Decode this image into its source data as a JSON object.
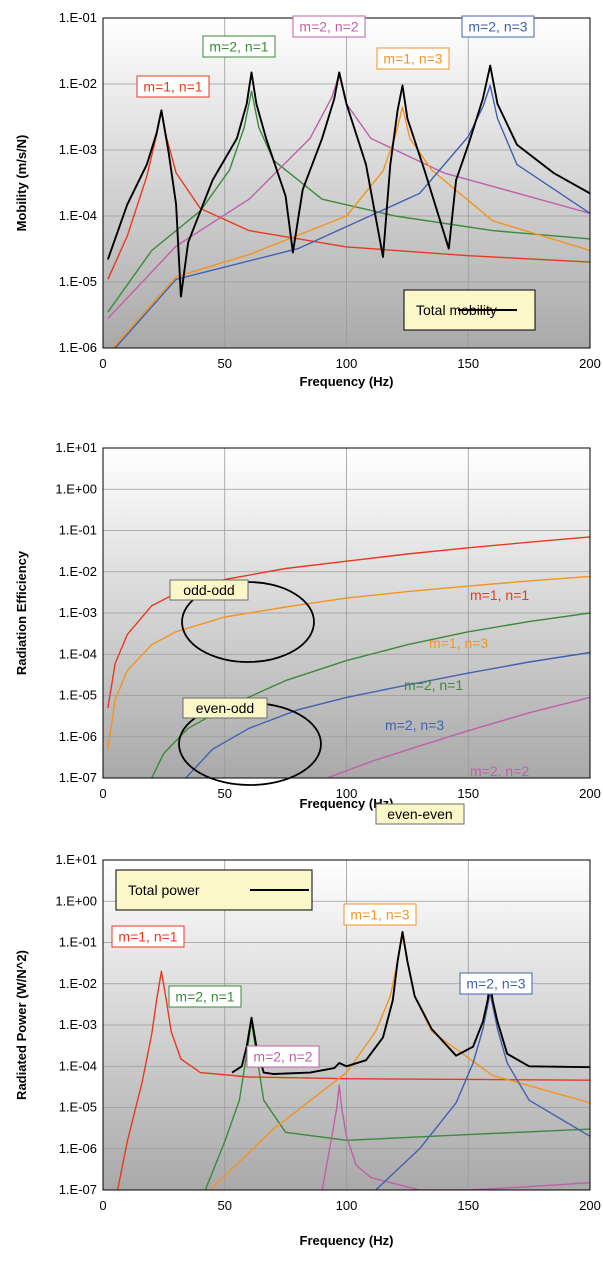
{
  "chart_data": [
    {
      "type": "line",
      "xlabel": "Frequency (Hz)",
      "ylabel": "Mobility (m/s/N)",
      "xlim": [
        0,
        200
      ],
      "ylim": [
        1e-06,
        0.1
      ],
      "yscale": "log",
      "x_ticks": [
        "0",
        "50",
        "100",
        "150",
        "200"
      ],
      "y_ticks": [
        "1.E-06",
        "1.E-05",
        "1.E-04",
        "1.E-03",
        "1.E-02",
        "1.E-01"
      ],
      "grid": true,
      "legend": {
        "label": "Total mobility",
        "position": "bottom-right"
      },
      "series": [
        {
          "name": "m=1, n=1",
          "color": "#e8391d",
          "x": [
            2,
            10,
            18,
            22,
            24,
            26,
            30,
            40,
            60,
            100,
            150,
            200
          ],
          "y": [
            1.1e-05,
            5e-05,
            0.0004,
            0.0017,
            0.004,
            0.0016,
            0.00045,
            0.00013,
            6e-05,
            3.4e-05,
            2.5e-05,
            2e-05
          ]
        },
        {
          "name": "m=2, n=1",
          "color": "#3a8a3a",
          "x": [
            2,
            20,
            40,
            52,
            58,
            61,
            64,
            70,
            90,
            120,
            160,
            200
          ],
          "y": [
            3.5e-06,
            3e-05,
            0.00012,
            0.0005,
            0.0022,
            0.0078,
            0.0022,
            0.0007,
            0.00018,
            0.0001,
            6e-05,
            4.5e-05
          ]
        },
        {
          "name": "m=2, n=2",
          "color": "#c060a8",
          "x": [
            2,
            30,
            60,
            85,
            94,
            97,
            100,
            110,
            140,
            200
          ],
          "y": [
            2.8e-06,
            3.5e-05,
            0.00018,
            0.0015,
            0.0063,
            0.014,
            0.005,
            0.0015,
            0.00045,
            0.00011
          ]
        },
        {
          "name": "m=1, n=3",
          "color": "#f39420",
          "x": [
            4,
            30,
            60,
            100,
            115,
            120,
            123,
            126,
            135,
            160,
            200
          ],
          "y": [
            1e-06,
            1.2e-05,
            2.6e-05,
            0.0001,
            0.00048,
            0.0016,
            0.0045,
            0.0015,
            0.0005,
            8.5e-05,
            3e-05
          ]
        },
        {
          "name": "m=2, n=3",
          "color": "#4060b0",
          "x": [
            5,
            30,
            80,
            130,
            150,
            156,
            159,
            162,
            170,
            200
          ],
          "y": [
            1e-06,
            1.1e-05,
            3.2e-05,
            0.00022,
            0.0016,
            0.0045,
            0.0095,
            0.003,
            0.0006,
            0.00011
          ]
        },
        {
          "name": "Total mobility",
          "color": "#000000",
          "x": [
            2,
            10,
            18,
            22,
            24,
            27,
            30,
            32,
            35,
            45,
            55,
            59,
            61,
            63,
            67,
            75,
            78,
            82,
            90,
            95,
            97,
            100,
            108,
            115,
            118,
            121,
            123,
            125,
            132,
            142,
            145,
            150,
            156,
            159,
            162,
            170,
            185,
            200
          ],
          "y": [
            2.2e-05,
            0.00015,
            0.0006,
            0.0018,
            0.004,
            0.0009,
            0.00015,
            6e-06,
            4e-05,
            0.00035,
            0.0015,
            0.005,
            0.015,
            0.005,
            0.0015,
            0.0002,
            2.8e-05,
            0.00025,
            0.0015,
            0.006,
            0.015,
            0.005,
            0.0006,
            2.4e-05,
            0.0006,
            0.004,
            0.0095,
            0.003,
            0.0005,
            3.2e-05,
            0.00035,
            0.0012,
            0.006,
            0.019,
            0.005,
            0.0012,
            0.00045,
            0.00022
          ]
        }
      ],
      "annotations": [
        {
          "text": "m=1, n=1",
          "color": "#e8391d",
          "boxed": true
        },
        {
          "text": "m=2, n=1",
          "color": "#3a8a3a",
          "boxed": true
        },
        {
          "text": "m=2, n=2",
          "color": "#c060a8",
          "boxed": true
        },
        {
          "text": "m=1, n=3",
          "color": "#f39420",
          "boxed": true
        },
        {
          "text": "m=2, n=3",
          "color": "#4060b0",
          "boxed": true
        }
      ]
    },
    {
      "type": "line",
      "xlabel": "Frequency (Hz)",
      "ylabel": "Radiation Efficiency",
      "xlim": [
        0,
        200
      ],
      "ylim": [
        1e-07,
        10
      ],
      "yscale": "log",
      "x_ticks": [
        "0",
        "50",
        "100",
        "150",
        "200"
      ],
      "y_ticks": [
        "1.E-07",
        "1.E-06",
        "1.E-05",
        "1.E-04",
        "1.E-03",
        "1.E-02",
        "1.E-01",
        "1.E+00",
        "1.E+01"
      ],
      "grid": true,
      "series": [
        {
          "name": "m=1, n=1",
          "color": "#e8391d",
          "x": [
            2,
            5,
            10,
            20,
            30,
            50,
            75,
            100,
            125,
            150,
            175,
            200
          ],
          "y": [
            5e-06,
            6e-05,
            0.0003,
            0.0015,
            0.003,
            0.0065,
            0.012,
            0.018,
            0.027,
            0.038,
            0.052,
            0.07
          ]
        },
        {
          "name": "m=1, n=3",
          "color": "#f39420",
          "x": [
            2,
            5,
            10,
            20,
            30,
            50,
            75,
            100,
            125,
            150,
            175,
            200
          ],
          "y": [
            5e-07,
            8e-06,
            4e-05,
            0.00017,
            0.00035,
            0.0008,
            0.0014,
            0.0023,
            0.0033,
            0.0045,
            0.006,
            0.0077
          ]
        },
        {
          "name": "m=2, n=1",
          "color": "#3a8a3a",
          "x": [
            20,
            25,
            35,
            50,
            75,
            100,
            125,
            150,
            175,
            200
          ],
          "y": [
            1e-07,
            4e-07,
            1.6e-06,
            5e-06,
            2.3e-05,
            7e-05,
            0.00017,
            0.00035,
            0.00062,
            0.001
          ]
        },
        {
          "name": "m=2, n=3",
          "color": "#4060b0",
          "x": [
            34,
            45,
            60,
            80,
            100,
            125,
            150,
            175,
            200
          ],
          "y": [
            1e-07,
            5e-07,
            1.6e-06,
            4.5e-06,
            9e-06,
            1.8e-05,
            3.5e-05,
            6.5e-05,
            0.00011
          ]
        },
        {
          "name": "m=2, n=2",
          "color": "#c060a8",
          "x": [
            92,
            110,
            130,
            150,
            175,
            200
          ],
          "y": [
            1e-07,
            2.5e-07,
            6e-07,
            1.4e-06,
            3.8e-06,
            9e-06
          ]
        }
      ],
      "annotations": [
        {
          "text": "m=1, n=1",
          "color": "#e8391d"
        },
        {
          "text": "m=1, n=3",
          "color": "#f39420"
        },
        {
          "text": "m=2, n=1",
          "color": "#3a8a3a"
        },
        {
          "text": "m=2, n=3",
          "color": "#4060b0"
        },
        {
          "text": "m=2, n=2",
          "color": "#c060a8"
        },
        {
          "text": "odd-odd",
          "color": "#000000",
          "boxed": true
        },
        {
          "text": "even-odd",
          "color": "#000000",
          "boxed": true
        },
        {
          "text": "even-even",
          "color": "#000000",
          "boxed": true
        }
      ]
    },
    {
      "type": "line",
      "xlabel": "Frequency (Hz)",
      "ylabel": "Radiated Power (W/N^2)",
      "xlim": [
        0,
        200
      ],
      "ylim": [
        1e-07,
        10
      ],
      "yscale": "log",
      "x_ticks": [
        "0",
        "50",
        "100",
        "150",
        "200"
      ],
      "y_ticks": [
        "1.E-07",
        "1.E-06",
        "1.E-05",
        "1.E-04",
        "1.E-03",
        "1.E-02",
        "1.E-01",
        "1.E+00",
        "1.E+01"
      ],
      "grid": true,
      "legend": {
        "label": "Total power",
        "position": "top-left"
      },
      "series": [
        {
          "name": "m=1, n=1",
          "color": "#e8391d",
          "x": [
            6,
            10,
            16,
            20,
            22,
            24,
            26,
            28,
            32,
            40,
            60,
            100,
            150,
            200
          ],
          "y": [
            1e-07,
            1.5e-06,
            4e-05,
            0.0006,
            0.004,
            0.02,
            0.004,
            0.0007,
            0.00015,
            7e-05,
            5.5e-05,
            5e-05,
            4.8e-05,
            4.6e-05
          ]
        },
        {
          "name": "m=2, n=1",
          "color": "#3a8a3a",
          "x": [
            42,
            50,
            56,
            59,
            61,
            63,
            66,
            75,
            100,
            150,
            200
          ],
          "y": [
            1e-07,
            1.5e-06,
            1.5e-05,
            0.0002,
            0.0012,
            0.0002,
            1.5e-05,
            2.5e-06,
            1.6e-06,
            2.2e-06,
            3e-06
          ]
        },
        {
          "name": "m=2, n=2",
          "color": "#c060a8",
          "x": [
            90,
            94,
            96,
            97,
            98,
            100,
            104,
            110,
            130,
            150,
            175,
            200
          ],
          "y": [
            1e-07,
            2e-06,
            1e-05,
            3.5e-05,
            1e-05,
            2e-06,
            4e-07,
            2e-07,
            1e-07,
            1e-07,
            1.2e-07,
            1.5e-07
          ]
        },
        {
          "name": "m=1, n=3",
          "color": "#f39420",
          "x": [
            44,
            70,
            100,
            112,
            118,
            121,
            123,
            125,
            128,
            135,
            160,
            200
          ],
          "y": [
            1e-07,
            3e-06,
            7e-05,
            0.0007,
            0.005,
            0.035,
            0.15,
            0.035,
            0.005,
            0.0007,
            6e-05,
            1.3e-05
          ]
        },
        {
          "name": "m=2, n=3",
          "color": "#4060b0",
          "x": [
            112,
            130,
            145,
            152,
            156,
            158,
            159,
            160,
            162,
            166,
            175,
            200
          ],
          "y": [
            1e-07,
            1e-06,
            1.3e-05,
            0.00012,
            0.0008,
            0.003,
            0.006,
            0.003,
            0.0008,
            0.00012,
            1.5e-05,
            2e-06
          ]
        },
        {
          "name": "Total power",
          "color": "#000000",
          "x": [
            53,
            57,
            59,
            61,
            63,
            66,
            70,
            85,
            95,
            97,
            100,
            108,
            115,
            119,
            121,
            123,
            125,
            128,
            135,
            145,
            152,
            156,
            158,
            159,
            160,
            162,
            166,
            175,
            200
          ],
          "y": [
            7e-05,
            0.0001,
            0.0003,
            0.0015,
            0.0003,
            7e-05,
            6.5e-05,
            7e-05,
            9e-05,
            0.00012,
            0.0001,
            0.00014,
            0.0005,
            0.004,
            0.035,
            0.18,
            0.035,
            0.005,
            0.0008,
            0.00018,
            0.0003,
            0.0012,
            0.004,
            0.012,
            0.004,
            0.0012,
            0.0002,
            0.0001,
            9.5e-05
          ]
        }
      ],
      "annotations": [
        {
          "text": "m=1, n=1",
          "color": "#e8391d",
          "boxed": true
        },
        {
          "text": "m=2, n=1",
          "color": "#3a8a3a",
          "boxed": true
        },
        {
          "text": "m=2, n=2",
          "color": "#c060a8",
          "boxed": true
        },
        {
          "text": "m=1, n=3",
          "color": "#f39420",
          "boxed": true
        },
        {
          "text": "m=2, n=3",
          "color": "#4060b0",
          "boxed": true
        }
      ]
    }
  ]
}
